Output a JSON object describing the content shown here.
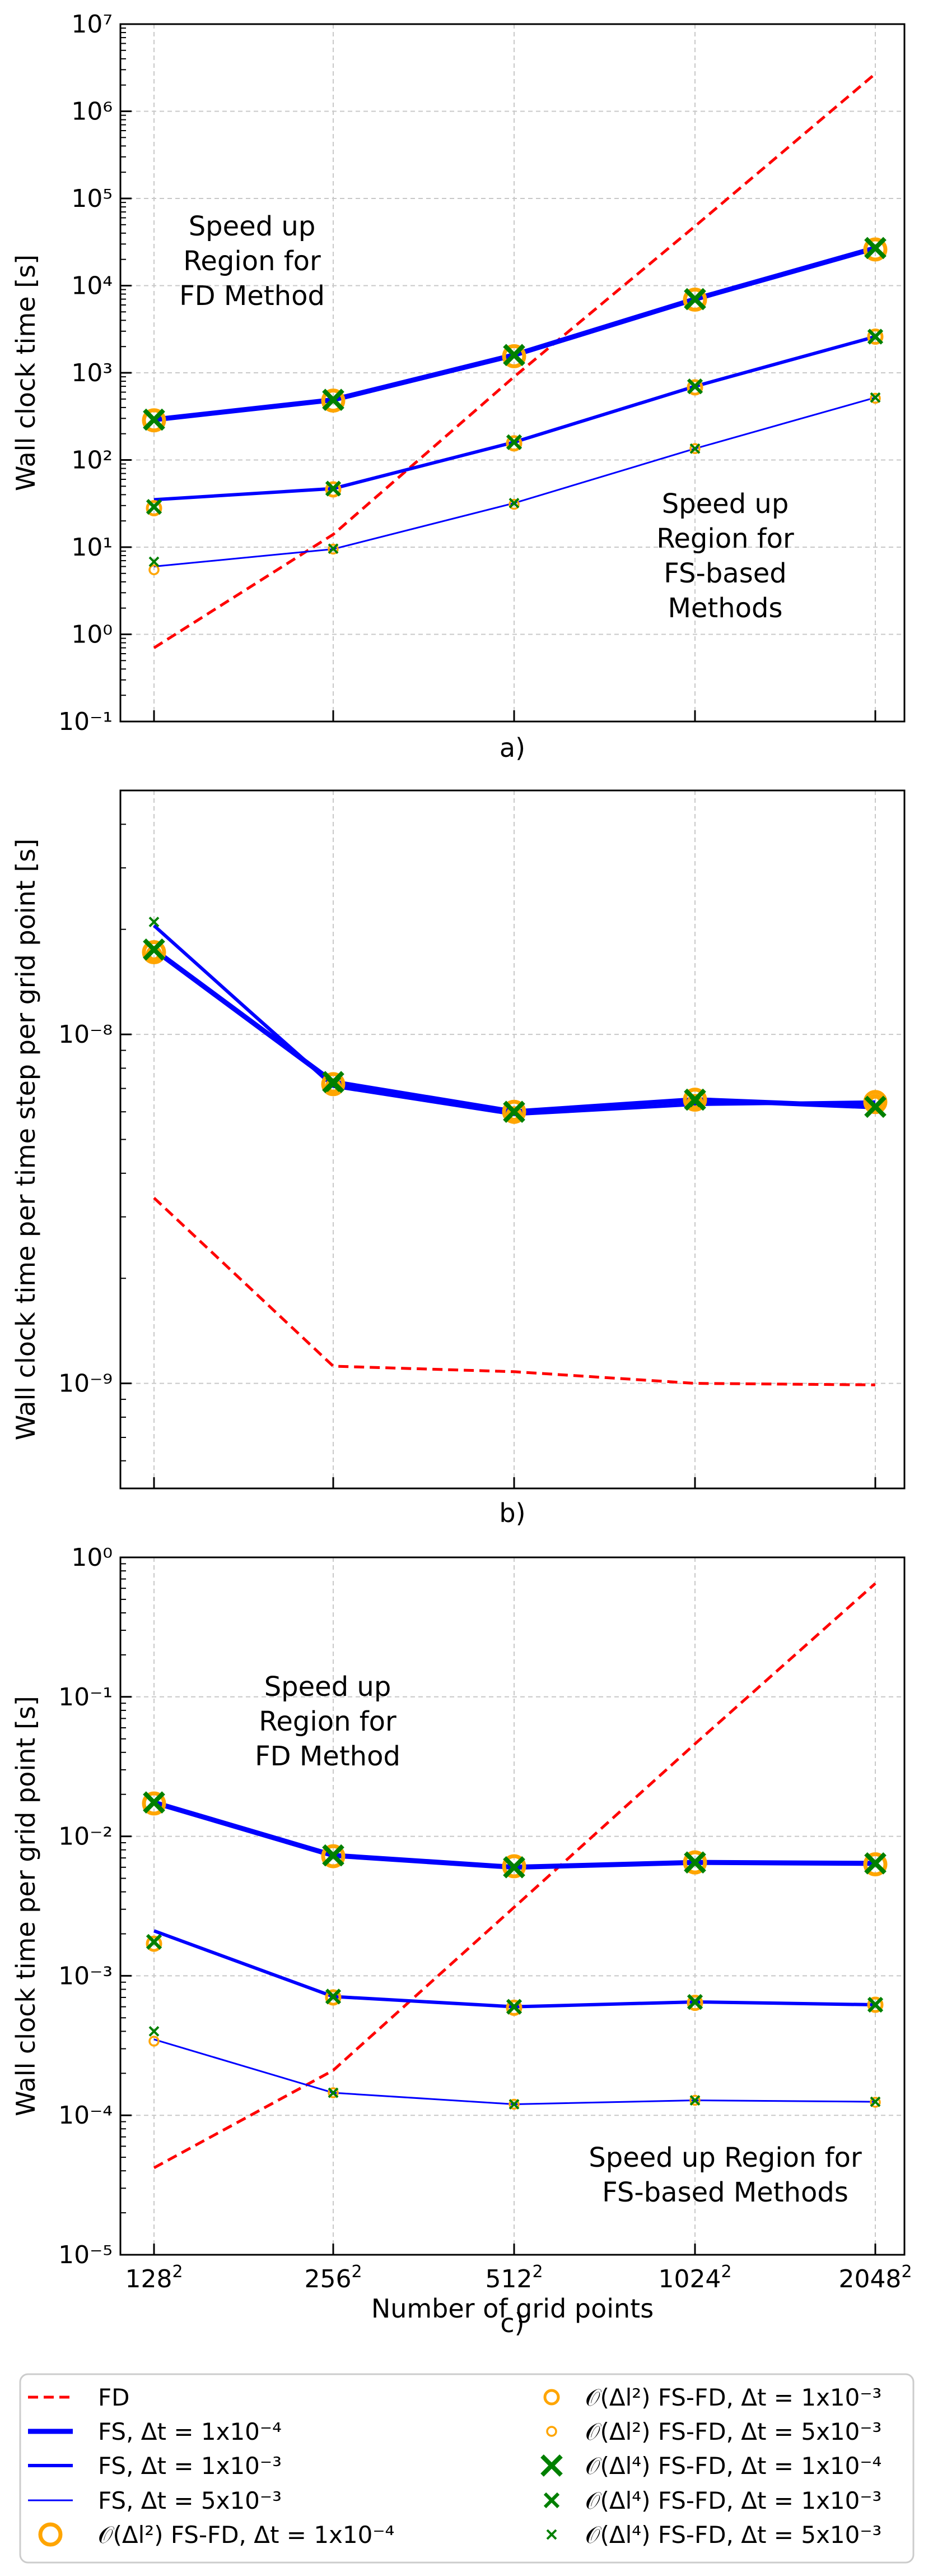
{
  "colors": {
    "fd": "#ff0000",
    "fs": "#0000ff",
    "ord2": "#ffa500",
    "ord4": "#008000",
    "grid": "#c8c8c8"
  },
  "chart_data": [
    {
      "type": "line",
      "panel": "a)",
      "yscale": "log",
      "ylabel": "Wall clock time [s]",
      "xlabel": "",
      "ylim": [
        0.1,
        10000000
      ],
      "yticks": [
        {
          "value": 0.1,
          "label": "10⁻¹"
        },
        {
          "value": 1,
          "label": "10⁰"
        },
        {
          "value": 10,
          "label": "10¹"
        },
        {
          "value": 100,
          "label": "10²"
        },
        {
          "value": 1000,
          "label": "10³"
        },
        {
          "value": 10000,
          "label": "10⁴"
        },
        {
          "value": 100000,
          "label": "10⁵"
        },
        {
          "value": 1000000,
          "label": "10⁶"
        },
        {
          "value": 10000000,
          "label": "10⁷"
        }
      ],
      "series": [
        {
          "name": "FD",
          "values": [
            0.7,
            14,
            900,
            48000,
            2700000
          ]
        },
        {
          "name": "FS, Δt = 1x10⁻⁴",
          "values": [
            290,
            490,
            1600,
            7000,
            27000
          ]
        },
        {
          "name": "FS, Δt = 1x10⁻³",
          "values": [
            35,
            47,
            160,
            700,
            2600
          ]
        },
        {
          "name": "FS, Δt = 5x10⁻³",
          "values": [
            6,
            9.5,
            32,
            135,
            520
          ]
        },
        {
          "name": "O(Δl²) FS-FD, Δt = 1x10⁻⁴",
          "values": [
            285,
            480,
            1550,
            6900,
            26000
          ]
        },
        {
          "name": "O(Δl²) FS-FD, Δt = 1x10⁻³",
          "values": [
            28,
            46,
            155,
            680,
            2600
          ]
        },
        {
          "name": "O(Δl²) FS-FD, Δt = 5x10⁻³",
          "values": [
            5.5,
            9.5,
            31,
            135,
            510
          ]
        },
        {
          "name": "O(Δl⁴) FS-FD, Δt = 1x10⁻⁴",
          "values": [
            290,
            490,
            1600,
            7000,
            27000
          ]
        },
        {
          "name": "O(Δl⁴) FS-FD, Δt = 1x10⁻³",
          "values": [
            29,
            47,
            160,
            700,
            2600
          ]
        },
        {
          "name": "O(Δl⁴) FS-FD, Δt = 5x10⁻³",
          "values": [
            6.8,
            9.6,
            32,
            135,
            520
          ]
        }
      ],
      "annotations": [
        {
          "text": [
            "Speed up",
            "Region for",
            "FD Method"
          ],
          "anchor": "upper-left"
        },
        {
          "text": [
            "Speed up",
            "Region for",
            "FS-based",
            "Methods"
          ],
          "anchor": "lower-right"
        }
      ]
    },
    {
      "type": "line",
      "panel": "b)",
      "yscale": "log",
      "ylabel": "Wall clock time per time step per grid point [s]",
      "xlabel": "",
      "ylim": [
        5e-10,
        5e-08
      ],
      "yticks": [
        {
          "value": 1e-09,
          "label": "10⁻⁹"
        },
        {
          "value": 1e-08,
          "label": "10⁻⁸"
        }
      ],
      "series": [
        {
          "name": "FD",
          "values": [
            3.4e-09,
            1.12e-09,
            1.08e-09,
            1e-09,
            9.9e-10
          ]
        },
        {
          "name": "FS, Δt = 1x10⁻⁴",
          "values": [
            1.75e-08,
            7.3e-09,
            6e-09,
            6.5e-09,
            6.2e-09
          ]
        },
        {
          "name": "FS, Δt = 1x10⁻³",
          "values": [
            2.05e-08,
            7.1e-09,
            5.9e-09,
            6.3e-09,
            6.4e-09
          ]
        },
        {
          "name": "FS, Δt = 5x10⁻³",
          "values": [
            2.05e-08,
            7.2e-09,
            6e-09,
            6.4e-09,
            6.2e-09
          ]
        },
        {
          "name": "O(Δl²) FS-FD, Δt = 1x10⁻⁴",
          "values": [
            1.72e-08,
            7.2e-09,
            6e-09,
            6.5e-09,
            6.4e-09
          ]
        },
        {
          "name": "O(Δl²) FS-FD, Δt = 1x10⁻³",
          "values": [
            1.7e-08,
            7.1e-09,
            5.9e-09,
            6.4e-09,
            6.4e-09
          ]
        },
        {
          "name": "O(Δl²) FS-FD, Δt = 5x10⁻³",
          "values": [
            1.7e-08,
            7.1e-09,
            5.9e-09,
            6.4e-09,
            6.4e-09
          ]
        },
        {
          "name": "O(Δl⁴) FS-FD, Δt = 1x10⁻⁴",
          "values": [
            1.75e-08,
            7.3e-09,
            6e-09,
            6.5e-09,
            6.2e-09
          ]
        },
        {
          "name": "O(Δl⁴) FS-FD, Δt = 1x10⁻³",
          "values": [
            1.75e-08,
            7.2e-09,
            6e-09,
            6.5e-09,
            6.2e-09
          ]
        },
        {
          "name": "O(Δl⁴) FS-FD, Δt = 5x10⁻³",
          "values": [
            2.1e-08,
            7.2e-09,
            6e-09,
            6.4e-09,
            6.2e-09
          ]
        }
      ],
      "annotations": []
    },
    {
      "type": "line",
      "panel": "c)",
      "yscale": "log",
      "ylabel": "Wall clock time per grid point [s]",
      "xlabel": "Number of grid points",
      "ylim": [
        1e-05,
        1
      ],
      "yticks": [
        {
          "value": 1e-05,
          "label": "10⁻⁵"
        },
        {
          "value": 0.0001,
          "label": "10⁻⁴"
        },
        {
          "value": 0.001,
          "label": "10⁻³"
        },
        {
          "value": 0.01,
          "label": "10⁻²"
        },
        {
          "value": 0.1,
          "label": "10⁻¹"
        },
        {
          "value": 1,
          "label": "10⁰"
        }
      ],
      "series": [
        {
          "name": "FD",
          "values": [
            4.2e-05,
            0.00021,
            0.0031,
            0.046,
            0.65
          ]
        },
        {
          "name": "FS, Δt = 1x10⁻⁴",
          "values": [
            0.0175,
            0.0073,
            0.006,
            0.0065,
            0.0064
          ]
        },
        {
          "name": "FS, Δt = 1x10⁻³",
          "values": [
            0.0021,
            0.00071,
            0.0006,
            0.00065,
            0.00062
          ]
        },
        {
          "name": "FS, Δt = 5x10⁻³",
          "values": [
            0.00035,
            0.000145,
            0.00012,
            0.000128,
            0.000125
          ]
        },
        {
          "name": "O(Δl²) FS-FD, Δt = 1x10⁻⁴",
          "values": [
            0.0172,
            0.0072,
            0.0061,
            0.0065,
            0.0063
          ]
        },
        {
          "name": "O(Δl²) FS-FD, Δt = 1x10⁻³",
          "values": [
            0.0017,
            0.0007,
            0.00059,
            0.00064,
            0.00062
          ]
        },
        {
          "name": "O(Δl²) FS-FD, Δt = 5x10⁻³",
          "values": [
            0.00034,
            0.000145,
            0.00012,
            0.000128,
            0.000124
          ]
        },
        {
          "name": "O(Δl⁴) FS-FD, Δt = 1x10⁻⁴",
          "values": [
            0.0175,
            0.0073,
            0.006,
            0.0065,
            0.0064
          ]
        },
        {
          "name": "O(Δl⁴) FS-FD, Δt = 1x10⁻³",
          "values": [
            0.00175,
            0.00071,
            0.0006,
            0.00065,
            0.00062
          ]
        },
        {
          "name": "O(Δl⁴) FS-FD, Δt = 5x10⁻³",
          "values": [
            0.0004,
            0.000145,
            0.00012,
            0.000128,
            0.000125
          ]
        }
      ],
      "annotations": [
        {
          "text": [
            "Speed up",
            "Region for",
            "FD Method"
          ],
          "anchor": "upper-left"
        },
        {
          "text": [
            "Speed up Region for",
            "FS-based Methods"
          ],
          "anchor": "lower-right"
        }
      ]
    }
  ],
  "x_categories": [
    {
      "base": "128",
      "exp": "2"
    },
    {
      "base": "256",
      "exp": "2"
    },
    {
      "base": "512",
      "exp": "2"
    },
    {
      "base": "1024",
      "exp": "2"
    },
    {
      "base": "2048",
      "exp": "2"
    }
  ],
  "legend": {
    "placement": "bottom",
    "columns": 2,
    "entries": [
      {
        "label": "FD",
        "style": "fd"
      },
      {
        "label": "FS, Δt = 1x10⁻⁴",
        "style": "fs1"
      },
      {
        "label": "FS, Δt = 1x10⁻³",
        "style": "fs2"
      },
      {
        "label": "FS, Δt = 5x10⁻³",
        "style": "fs3"
      },
      {
        "label": "𝒪(Δl²) FS-FD, Δt = 1x10⁻⁴",
        "style": "o2-1"
      },
      {
        "label": "𝒪(Δl²) FS-FD, Δt = 1x10⁻³",
        "style": "o2-2"
      },
      {
        "label": "𝒪(Δl²) FS-FD, Δt = 5x10⁻³",
        "style": "o2-3"
      },
      {
        "label": "𝒪(Δl⁴) FS-FD, Δt = 1x10⁻⁴",
        "style": "o4-1"
      },
      {
        "label": "𝒪(Δl⁴) FS-FD, Δt = 1x10⁻³",
        "style": "o4-2"
      },
      {
        "label": "𝒪(Δl⁴) FS-FD, Δt = 5x10⁻³",
        "style": "o4-3"
      }
    ]
  }
}
